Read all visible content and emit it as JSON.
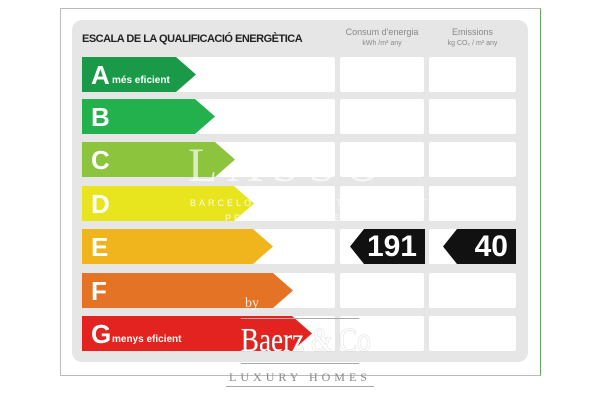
{
  "title": "ESCALA DE LA QUALIFICACIÓ ENERGÈTICA",
  "columns": [
    {
      "label": "Consum d'energia",
      "unit": "kWh /m² any"
    },
    {
      "label": "Emissions",
      "unit": "kg CO₂ / m² any"
    }
  ],
  "ratings": [
    {
      "letter": "A",
      "label": "més eficient",
      "color": "#1a9a48"
    },
    {
      "letter": "B",
      "label": "",
      "color": "#23b14d"
    },
    {
      "letter": "C",
      "label": "",
      "color": "#8cc43e"
    },
    {
      "letter": "D",
      "label": "",
      "color": "#e8e51f"
    },
    {
      "letter": "E",
      "label": "",
      "color": "#f0b41c"
    },
    {
      "letter": "F",
      "label": "",
      "color": "#e47325"
    },
    {
      "letter": "G",
      "label": "menys eficient",
      "color": "#e2231f"
    }
  ],
  "current_rating": "E",
  "energy_value": "191",
  "emissions_value": "40",
  "watermark": {
    "top": "LASSO",
    "line1": "BARCELONA REAL ESTATE EXPERTS",
    "line2": "PROPERTY HOMES",
    "by": "by",
    "brand": "Baerz & Co",
    "sub": "LUXURY HOMES"
  }
}
